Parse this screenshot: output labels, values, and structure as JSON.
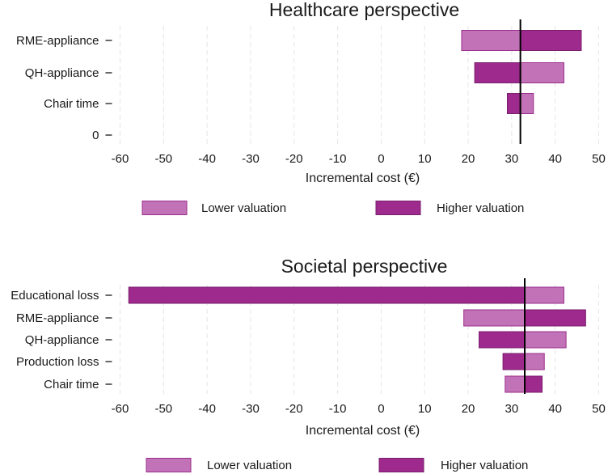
{
  "chart_data": [
    {
      "type": "bar",
      "subtype": "tornado",
      "title": "Healthcare perspective",
      "xlabel": "Incremental cost (€)",
      "xlim": [
        -60,
        50
      ],
      "xticks": [
        -60,
        -50,
        -40,
        -30,
        -20,
        -10,
        0,
        10,
        20,
        30,
        40,
        50
      ],
      "base_value": 32,
      "categories": [
        "RME-appliance",
        "QH-appliance",
        "Chair time",
        "0"
      ],
      "series": [
        {
          "name": "Lower valuation",
          "values": [
            18.5,
            42,
            35,
            null
          ]
        },
        {
          "name": "Higher valuation",
          "values": [
            46,
            21.5,
            29,
            null
          ]
        }
      ],
      "legend_position": "bottom",
      "grid": true
    },
    {
      "type": "bar",
      "subtype": "tornado",
      "title": "Societal perspective",
      "xlabel": "Incremental cost (€)",
      "xlim": [
        -60,
        50
      ],
      "xticks": [
        -60,
        -50,
        -40,
        -30,
        -20,
        -10,
        0,
        10,
        20,
        30,
        40,
        50
      ],
      "base_value": 33,
      "categories": [
        "Educational loss",
        "RME-appliance",
        "QH-appliance",
        "Production loss",
        "Chair time"
      ],
      "series": [
        {
          "name": "Lower valuation",
          "values": [
            42,
            19,
            42.5,
            37.5,
            28.5
          ]
        },
        {
          "name": "Higher valuation",
          "values": [
            -58,
            47,
            22.5,
            28,
            37
          ]
        }
      ],
      "legend_position": "bottom",
      "grid": true
    }
  ],
  "colors": {
    "lower_fill": "#c272b6",
    "lower_stroke": "#9b2f8c",
    "higher_fill": "#9d2a8c",
    "higher_stroke": "#7a1f6d",
    "grid": "#e6e6e6",
    "text": "#1a1a1a"
  }
}
